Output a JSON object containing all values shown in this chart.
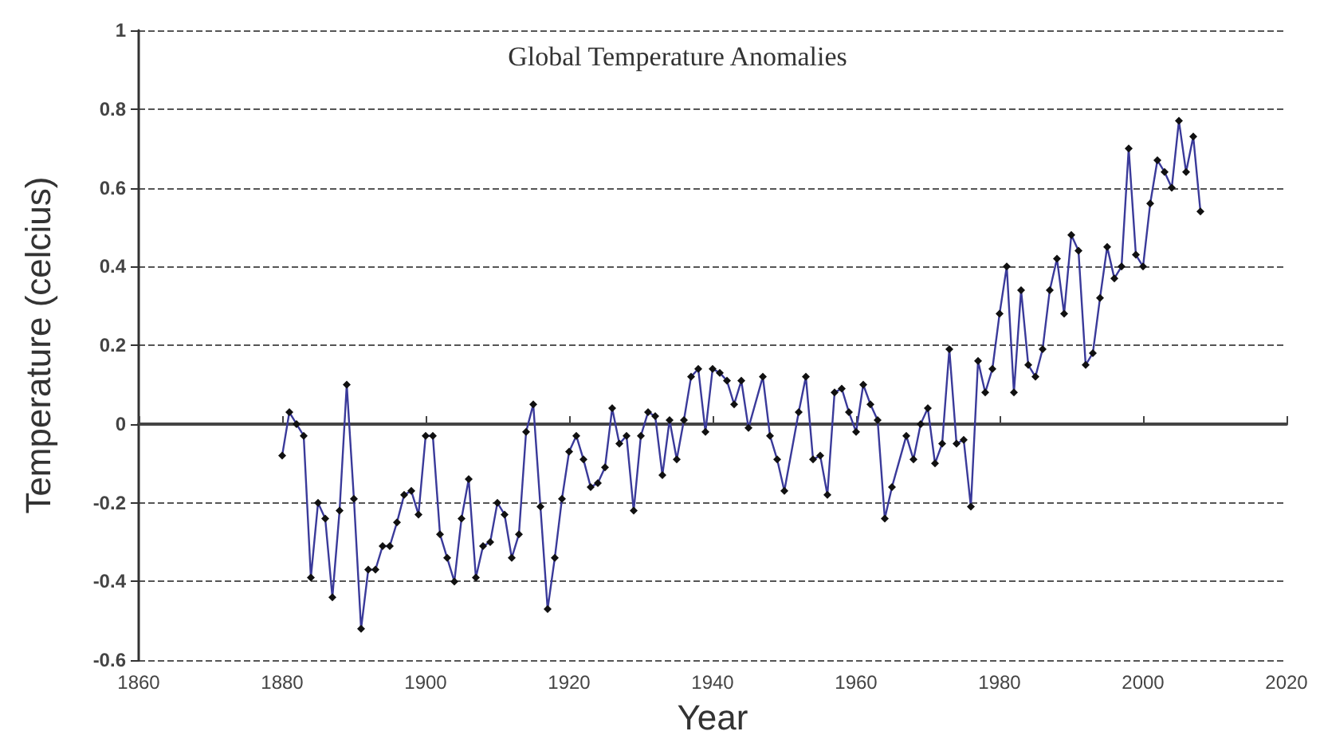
{
  "chart_data": {
    "type": "line",
    "title": "Global Temperature Anomalies",
    "xlabel": "Year",
    "ylabel": "Temperature (celcius)",
    "x": [
      1880,
      1881,
      1882,
      1883,
      1884,
      1885,
      1886,
      1887,
      1888,
      1889,
      1890,
      1891,
      1892,
      1893,
      1894,
      1895,
      1896,
      1897,
      1898,
      1899,
      1900,
      1901,
      1902,
      1903,
      1904,
      1905,
      1906,
      1907,
      1908,
      1909,
      1910,
      1911,
      1912,
      1913,
      1914,
      1915,
      1916,
      1917,
      1918,
      1919,
      1920,
      1921,
      1922,
      1923,
      1924,
      1925,
      1926,
      1927,
      1928,
      1929,
      1930,
      1931,
      1932,
      1933,
      1934,
      1935,
      1936,
      1937,
      1938,
      1939,
      1940,
      1941,
      1942,
      1943,
      1944,
      1945,
      1947,
      1948,
      1949,
      1950,
      1952,
      1953,
      1954,
      1955,
      1956,
      1957,
      1958,
      1959,
      1960,
      1961,
      1962,
      1963,
      1964,
      1965,
      1967,
      1968,
      1969,
      1970,
      1971,
      1972,
      1973,
      1974,
      1975,
      1976,
      1977,
      1978,
      1979,
      1980,
      1981,
      1982,
      1983,
      1984,
      1985,
      1986,
      1987,
      1988,
      1989,
      1990,
      1991,
      1992,
      1993,
      1994,
      1995,
      1996,
      1997,
      1998,
      1999,
      2000,
      2001,
      2002,
      2003,
      2004,
      2005,
      2006,
      2007,
      2008
    ],
    "series": [
      {
        "color": "#3a3a9a",
        "values": [
          -0.08,
          0.03,
          0.0,
          -0.03,
          -0.39,
          -0.2,
          -0.24,
          -0.44,
          -0.22,
          0.1,
          -0.19,
          -0.52,
          -0.37,
          -0.37,
          -0.31,
          -0.31,
          -0.25,
          -0.18,
          -0.17,
          -0.23,
          -0.03,
          -0.03,
          -0.28,
          -0.34,
          -0.4,
          -0.24,
          -0.14,
          -0.39,
          -0.31,
          -0.3,
          -0.2,
          -0.23,
          -0.34,
          -0.28,
          -0.02,
          0.05,
          -0.21,
          -0.47,
          -0.34,
          -0.19,
          -0.07,
          -0.03,
          -0.09,
          -0.16,
          -0.15,
          -0.11,
          0.04,
          -0.05,
          -0.03,
          -0.22,
          -0.03,
          0.03,
          0.02,
          -0.13,
          0.01,
          -0.09,
          0.01,
          0.12,
          0.14,
          -0.02,
          0.14,
          0.13,
          0.11,
          0.05,
          0.11,
          -0.01,
          0.12,
          -0.03,
          -0.09,
          -0.17,
          0.03,
          0.12,
          -0.09,
          -0.08,
          -0.18,
          0.08,
          0.09,
          0.03,
          -0.02,
          0.1,
          0.05,
          0.01,
          -0.24,
          -0.16,
          -0.03,
          -0.09,
          0.0,
          0.04,
          -0.1,
          -0.05,
          0.19,
          -0.05,
          -0.04,
          -0.21,
          0.16,
          0.08,
          0.14,
          0.28,
          0.4,
          0.08,
          0.34,
          0.15,
          0.12,
          0.19,
          0.34,
          0.42,
          0.28,
          0.48,
          0.44,
          0.15,
          0.18,
          0.32,
          0.45,
          0.37,
          0.4,
          0.7,
          0.43,
          0.4,
          0.56,
          0.67,
          0.64,
          0.6,
          0.77,
          0.64,
          0.73,
          0.54
        ]
      }
    ],
    "xlim": [
      1860,
      2020
    ],
    "xticks": [
      1860,
      1880,
      1900,
      1920,
      1940,
      1960,
      1980,
      2000,
      2020
    ],
    "ylim": [
      -0.6,
      1
    ],
    "yticks": [
      -0.6,
      -0.4,
      -0.2,
      0,
      0.2,
      0.4,
      0.6,
      0.8,
      1
    ],
    "grid": "y",
    "marker": "diamond",
    "line_style": "solid"
  }
}
